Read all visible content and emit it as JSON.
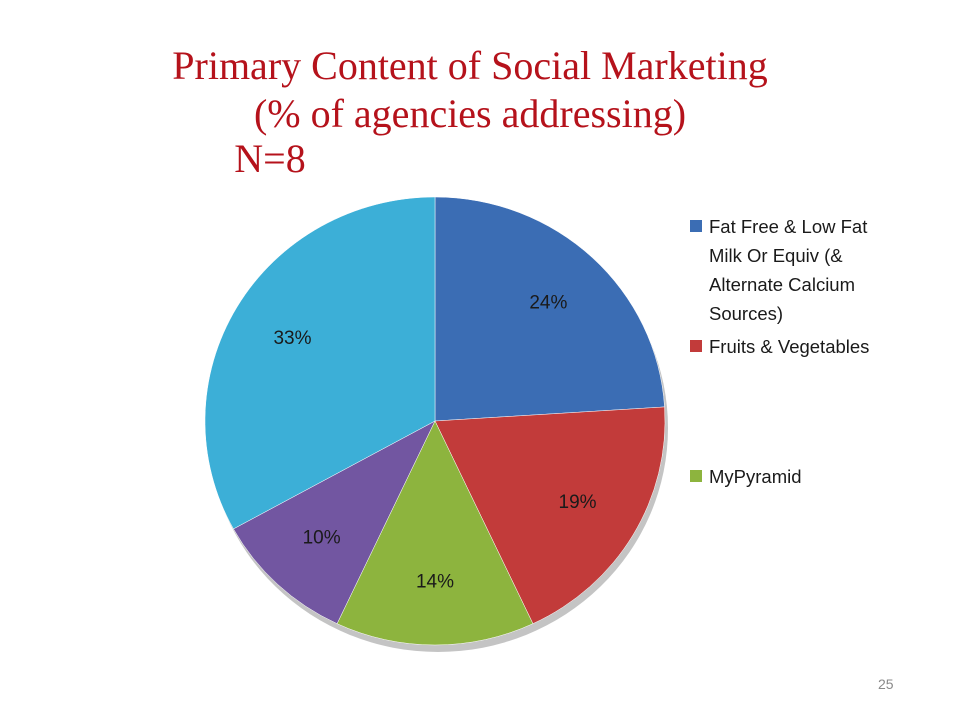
{
  "chart_data": {
    "type": "pie",
    "title": "Primary Content of Social Marketing",
    "subtitle": "(% of agencies addressing)",
    "annotation": "N=8",
    "categories": [
      "Fat Free & Low Fat Milk Or Equiv (& Alternate Calcium Sources)",
      "Fruits & Vegetables",
      "MyPyramid",
      null,
      null
    ],
    "values": [
      24,
      19,
      14,
      10,
      33
    ],
    "value_labels": [
      "24%",
      "19%",
      "14%",
      "10%",
      "33%"
    ],
    "colors": [
      "#3b6db4",
      "#c23b3a",
      "#8db43e",
      "#7256a1",
      "#3cafd7"
    ],
    "legend": "right"
  },
  "page_number": "25"
}
